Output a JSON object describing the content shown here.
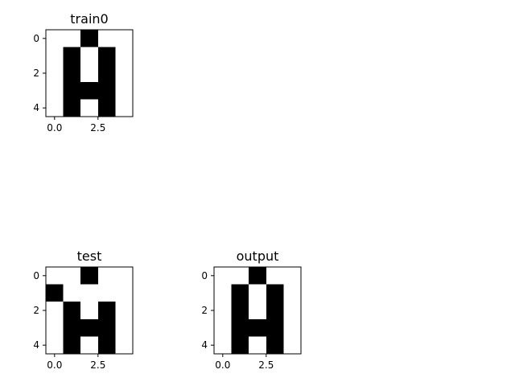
{
  "chart_data": [
    {
      "type": "heatmap",
      "title": "train0",
      "colormap": {
        "0": "#ffffff",
        "1": "#000000"
      },
      "xticks": [
        "0.0",
        "2.5"
      ],
      "yticks": [
        "0",
        "2",
        "4"
      ],
      "xlim": [
        -0.5,
        4.5
      ],
      "ylim": [
        4.5,
        -0.5
      ],
      "grid": [
        [
          0,
          0,
          1,
          0,
          0
        ],
        [
          0,
          1,
          0,
          1,
          0
        ],
        [
          0,
          1,
          0,
          1,
          0
        ],
        [
          0,
          1,
          1,
          1,
          0
        ],
        [
          0,
          1,
          0,
          1,
          0
        ]
      ]
    },
    {
      "type": "heatmap",
      "title": "test",
      "colormap": {
        "0": "#ffffff",
        "1": "#000000"
      },
      "xticks": [
        "0.0",
        "2.5"
      ],
      "yticks": [
        "0",
        "2",
        "4"
      ],
      "xlim": [
        -0.5,
        4.5
      ],
      "ylim": [
        4.5,
        -0.5
      ],
      "grid": [
        [
          0,
          0,
          1,
          0,
          0
        ],
        [
          1,
          0,
          0,
          0,
          0
        ],
        [
          0,
          1,
          0,
          1,
          0
        ],
        [
          0,
          1,
          1,
          1,
          0
        ],
        [
          0,
          1,
          0,
          1,
          0
        ]
      ]
    },
    {
      "type": "heatmap",
      "title": "output",
      "colormap": {
        "0": "#ffffff",
        "1": "#000000"
      },
      "xticks": [
        "0.0",
        "2.5"
      ],
      "yticks": [
        "0",
        "2",
        "4"
      ],
      "xlim": [
        -0.5,
        4.5
      ],
      "ylim": [
        4.5,
        -0.5
      ],
      "grid": [
        [
          0,
          0,
          1,
          0,
          0
        ],
        [
          0,
          1,
          0,
          1,
          0
        ],
        [
          0,
          1,
          0,
          1,
          0
        ],
        [
          0,
          1,
          1,
          1,
          0
        ],
        [
          0,
          1,
          0,
          1,
          0
        ]
      ]
    }
  ]
}
